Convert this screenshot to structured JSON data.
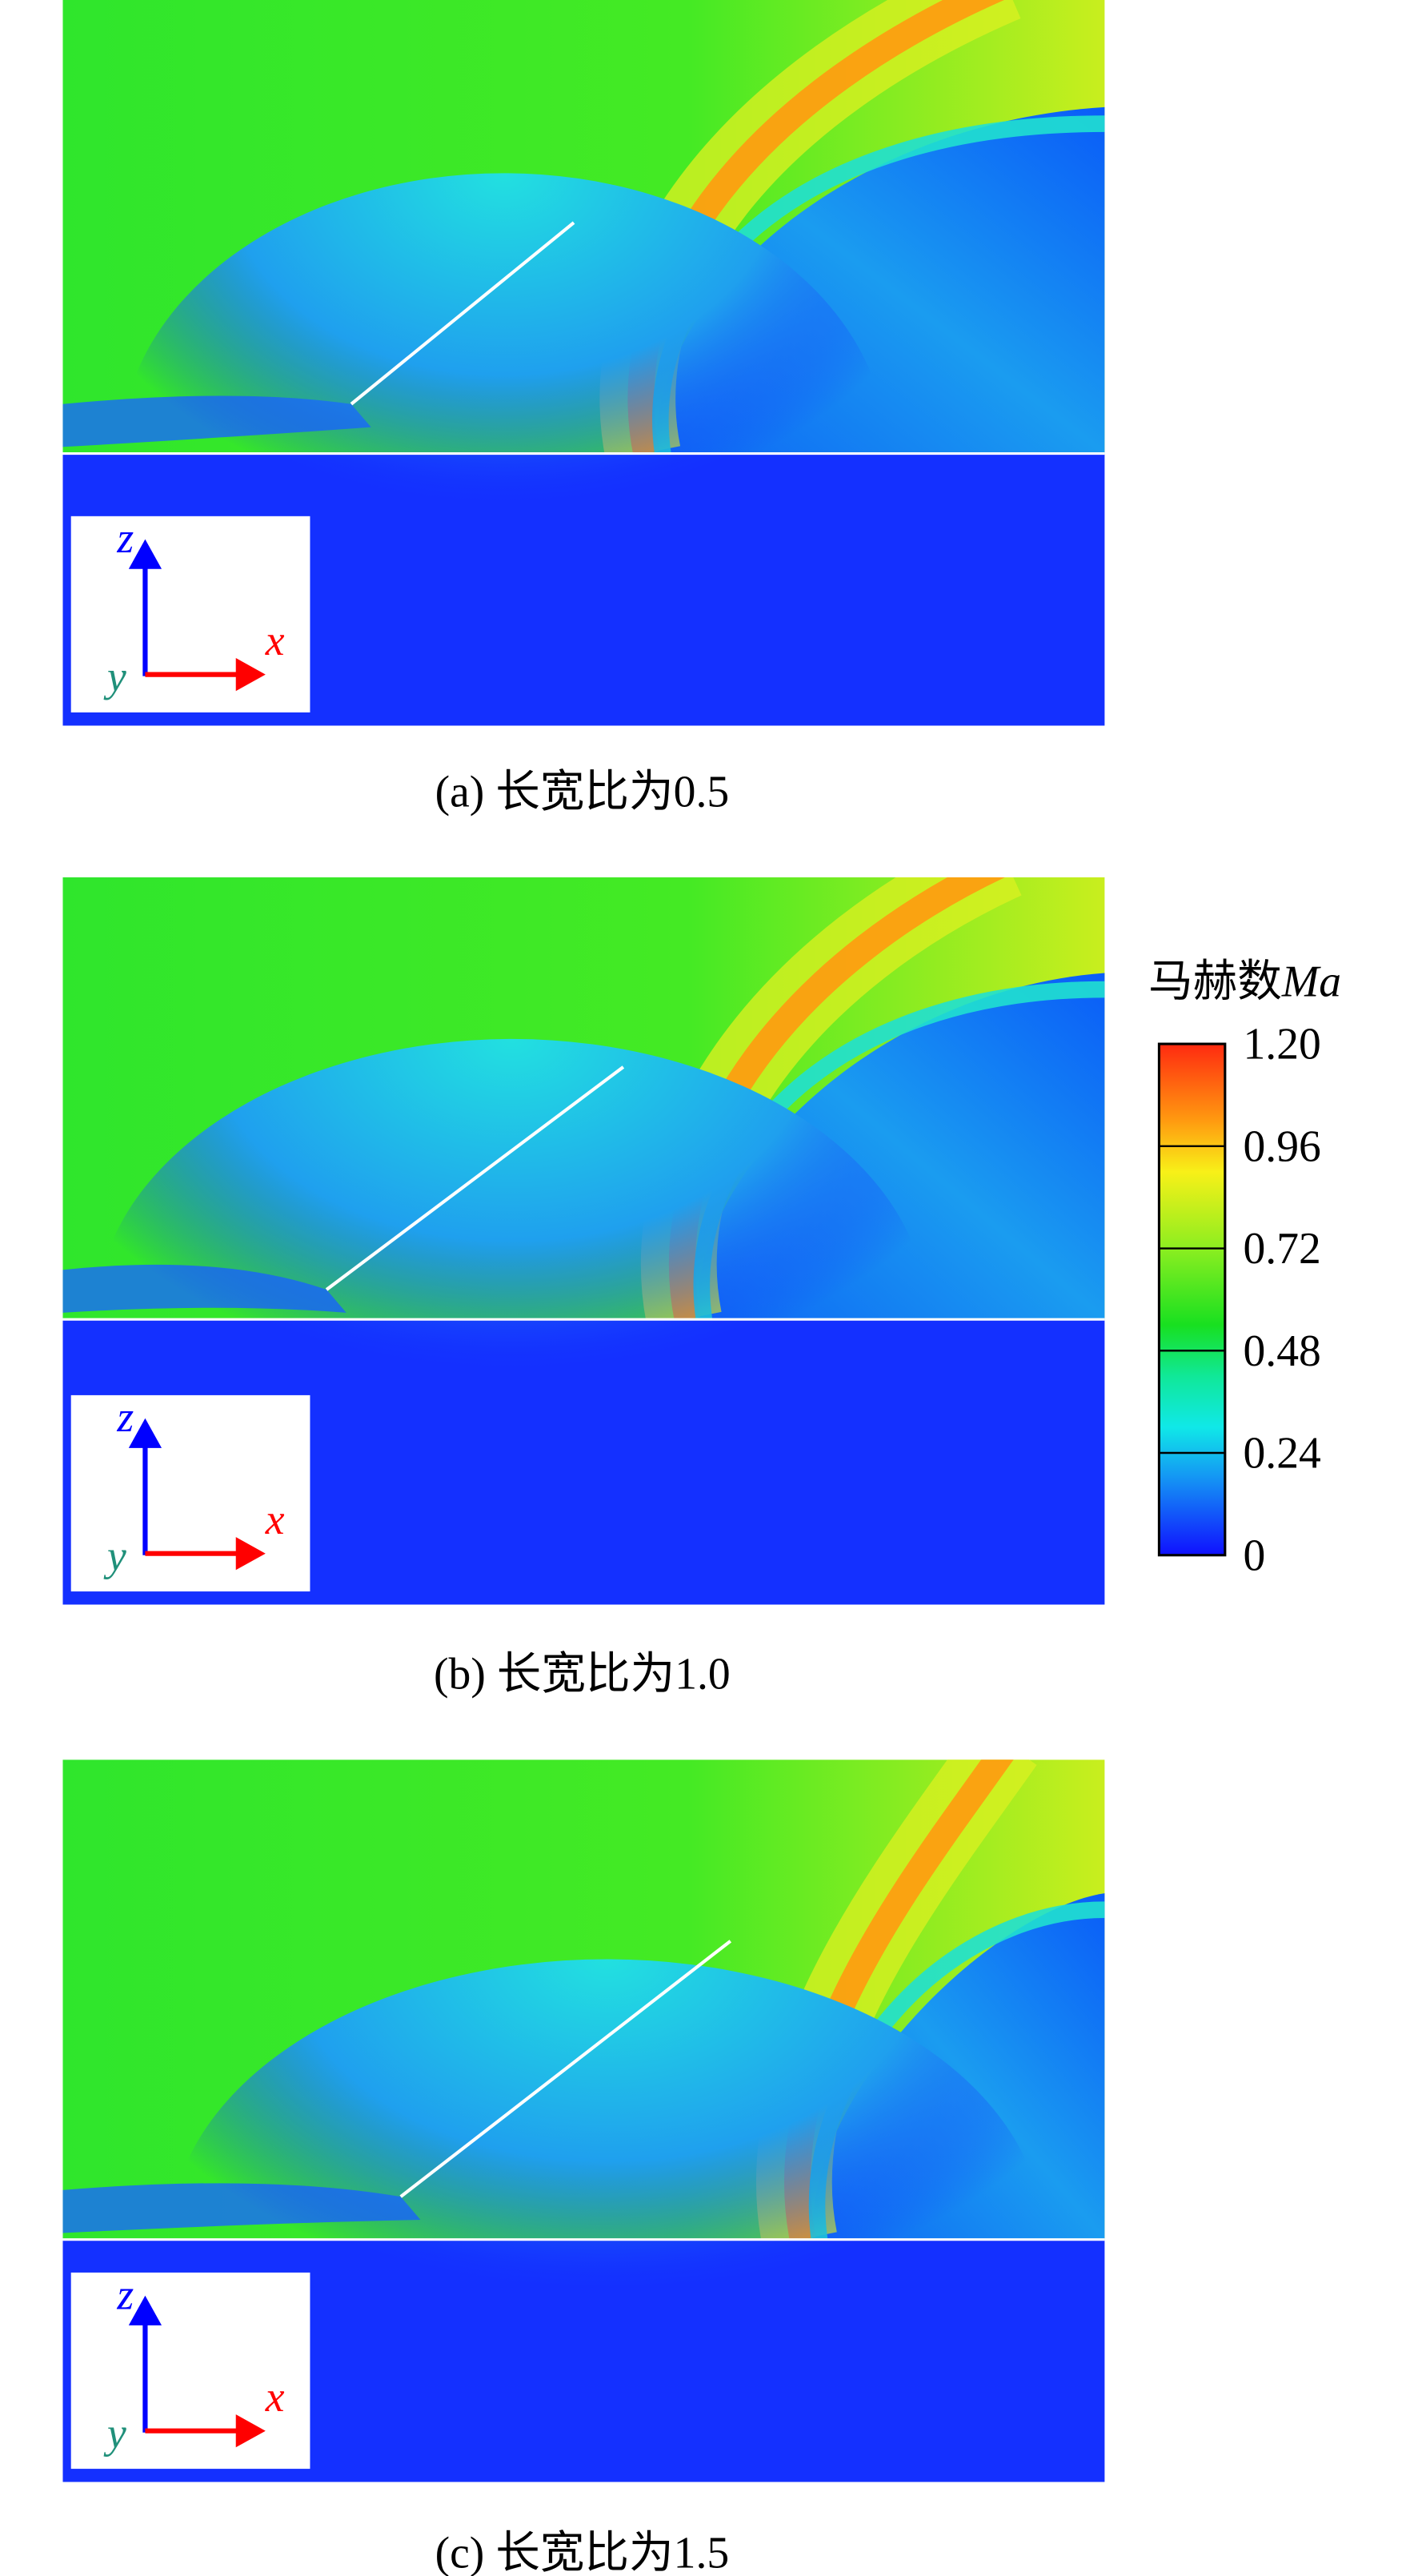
{
  "panels": [
    {
      "caption": "(a) 长宽比为0.5",
      "axes": {
        "z": "z",
        "x": "x",
        "y": "y"
      }
    },
    {
      "caption": "(b) 长宽比为1.0",
      "axes": {
        "z": "z",
        "x": "x",
        "y": "y"
      }
    },
    {
      "caption": "(c) 长宽比为1.5",
      "axes": {
        "z": "z",
        "x": "x",
        "y": "y"
      }
    }
  ],
  "colorbar": {
    "title": "马赫数",
    "title_symbol": "Ma",
    "clim": [
      0,
      1.2
    ],
    "ticks": [
      {
        "value": 1.2,
        "label": "1.20"
      },
      0.96,
      0.72,
      0.48,
      0.24,
      0
    ]
  }
}
